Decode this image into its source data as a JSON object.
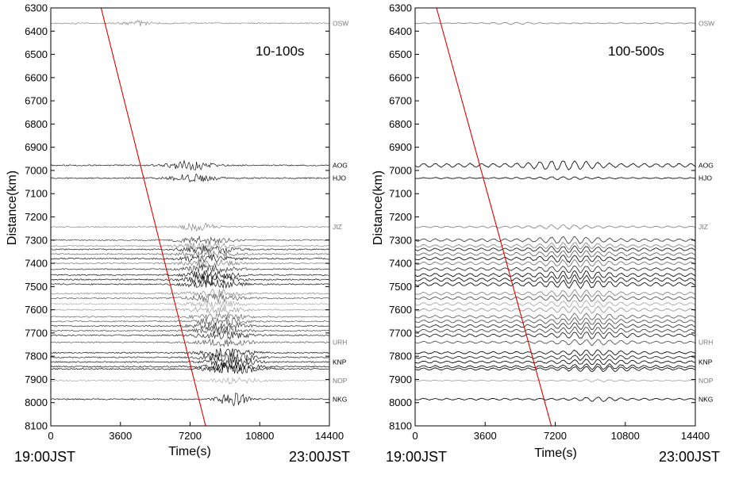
{
  "chart_data": [
    {
      "type": "line",
      "title": "10-100s",
      "xlabel": "Time(s)",
      "ylabel": "Distance(km)",
      "xlim": [
        0,
        14400
      ],
      "ylim": [
        6300,
        8100
      ],
      "y_inverted": true,
      "x_ticks": [
        0,
        3600,
        7200,
        10800,
        14400
      ],
      "y_ticks": [
        6300,
        6400,
        6500,
        6600,
        6700,
        6800,
        6900,
        7000,
        7100,
        7200,
        7300,
        7400,
        7500,
        7600,
        7700,
        7800,
        7900,
        8000,
        8100
      ],
      "start_label": "19:00JST",
      "end_label": "23:00JST",
      "arrival_line": {
        "color": "#e00000",
        "points": [
          [
            2600,
            6300
          ],
          [
            8000,
            8100
          ]
        ]
      },
      "stations": [
        {
          "name": "OSW",
          "distance": 6366,
          "color": "#888888",
          "burst_center": 4500,
          "burst_width": 1500,
          "amp": 3
        },
        {
          "name": "AOG",
          "distance": 6978,
          "color": "#111111",
          "burst_center": 7200,
          "burst_width": 2200,
          "amp": 6
        },
        {
          "name": "HJO",
          "distance": 7033,
          "color": "#111111",
          "burst_center": 7400,
          "burst_width": 2200,
          "amp": 5
        },
        {
          "name": "JIZ",
          "distance": 7243,
          "color": "#888888",
          "burst_center": 7600,
          "burst_width": 1800,
          "amp": 5
        },
        {
          "name": "",
          "distance": 7300,
          "color": "#444444",
          "burst_center": 8000,
          "burst_width": 2600,
          "amp": 5
        },
        {
          "name": "",
          "distance": 7325,
          "color": "#888888",
          "burst_center": 8000,
          "burst_width": 2600,
          "amp": 5
        },
        {
          "name": "",
          "distance": 7340,
          "color": "#222222",
          "burst_center": 8100,
          "burst_width": 2600,
          "amp": 5
        },
        {
          "name": "",
          "distance": 7360,
          "color": "#666666",
          "burst_center": 8100,
          "burst_width": 2600,
          "amp": 5
        },
        {
          "name": "",
          "distance": 7380,
          "color": "#111111",
          "burst_center": 8100,
          "burst_width": 2600,
          "amp": 5
        },
        {
          "name": "",
          "distance": 7400,
          "color": "#777777",
          "burst_center": 8200,
          "burst_width": 2600,
          "amp": 5
        },
        {
          "name": "",
          "distance": 7425,
          "color": "#333333",
          "burst_center": 8200,
          "burst_width": 2600,
          "amp": 5
        },
        {
          "name": "",
          "distance": 7450,
          "color": "#111111",
          "burst_center": 8300,
          "burst_width": 2600,
          "amp": 6
        },
        {
          "name": "",
          "distance": 7470,
          "color": "#111111",
          "burst_center": 8300,
          "burst_width": 2600,
          "amp": 6
        },
        {
          "name": "",
          "distance": 7490,
          "color": "#111111",
          "burst_center": 8300,
          "burst_width": 2600,
          "amp": 6
        },
        {
          "name": "",
          "distance": 7530,
          "color": "#888888",
          "burst_center": 8400,
          "burst_width": 2600,
          "amp": 5
        },
        {
          "name": "",
          "distance": 7550,
          "color": "#555555",
          "burst_center": 8500,
          "burst_width": 2600,
          "amp": 5
        },
        {
          "name": "",
          "distance": 7575,
          "color": "#aaaaaa",
          "burst_center": 8500,
          "burst_width": 2600,
          "amp": 5
        },
        {
          "name": "",
          "distance": 7600,
          "color": "#999999",
          "burst_center": 8600,
          "burst_width": 2600,
          "amp": 5
        },
        {
          "name": "",
          "distance": 7630,
          "color": "#666666",
          "burst_center": 8700,
          "burst_width": 2600,
          "amp": 5
        },
        {
          "name": "",
          "distance": 7650,
          "color": "#555555",
          "burst_center": 8700,
          "burst_width": 2600,
          "amp": 5
        },
        {
          "name": "",
          "distance": 7670,
          "color": "#333333",
          "burst_center": 8800,
          "burst_width": 2600,
          "amp": 5
        },
        {
          "name": "",
          "distance": 7690,
          "color": "#444444",
          "burst_center": 8800,
          "burst_width": 2600,
          "amp": 5
        },
        {
          "name": "",
          "distance": 7710,
          "color": "#222222",
          "burst_center": 8900,
          "burst_width": 2600,
          "amp": 5
        },
        {
          "name": "URH",
          "distance": 7740,
          "color": "#555555",
          "burst_center": 9000,
          "burst_width": 2600,
          "amp": 5
        },
        {
          "name": "",
          "distance": 7785,
          "color": "#111111",
          "burst_center": 9100,
          "burst_width": 2600,
          "amp": 6
        },
        {
          "name": "",
          "distance": 7805,
          "color": "#222222",
          "burst_center": 9200,
          "burst_width": 2600,
          "amp": 6
        },
        {
          "name": "KNP",
          "distance": 7825,
          "color": "#111111",
          "burst_center": 9300,
          "burst_width": 2600,
          "amp": 6
        },
        {
          "name": "",
          "distance": 7845,
          "color": "#111111",
          "burst_center": 9300,
          "burst_width": 2600,
          "amp": 6
        },
        {
          "name": "",
          "distance": 7855,
          "color": "#111111",
          "burst_center": 9400,
          "burst_width": 2600,
          "amp": 6
        },
        {
          "name": "NOP",
          "distance": 7905,
          "color": "#aaaaaa",
          "burst_center": 9600,
          "burst_width": 2200,
          "amp": 4
        },
        {
          "name": "NKG",
          "distance": 7985,
          "color": "#111111",
          "burst_center": 9400,
          "burst_width": 1400,
          "amp": 10
        }
      ]
    },
    {
      "type": "line",
      "title": "100-500s",
      "xlabel": "Time(s)",
      "ylabel": "Distance(km)",
      "xlim": [
        0,
        14400
      ],
      "ylim": [
        6300,
        8100
      ],
      "y_inverted": true,
      "x_ticks": [
        0,
        3600,
        7200,
        10800,
        14400
      ],
      "y_ticks": [
        6300,
        6400,
        6500,
        6600,
        6700,
        6800,
        6900,
        7000,
        7100,
        7200,
        7300,
        7400,
        7500,
        7600,
        7700,
        7800,
        7900,
        8000,
        8100
      ],
      "start_label": "19:00JST",
      "end_label": "23:00JST",
      "arrival_line": {
        "color": "#e00000",
        "points": [
          [
            1100,
            6300
          ],
          [
            7000,
            8100
          ]
        ]
      },
      "stations": [
        {
          "name": "OSW",
          "distance": 6366,
          "color": "#888888",
          "burst_center": 5000,
          "burst_width": 2500,
          "amp": 1.5
        },
        {
          "name": "AOG",
          "distance": 6978,
          "color": "#111111",
          "burst_center": 7600,
          "burst_width": 3500,
          "amp": 7
        },
        {
          "name": "HJO",
          "distance": 7033,
          "color": "#111111",
          "burst_center": 7600,
          "burst_width": 3500,
          "amp": 2
        },
        {
          "name": "JIZ",
          "distance": 7243,
          "color": "#888888",
          "burst_center": 7600,
          "burst_width": 3500,
          "amp": 3
        },
        {
          "name": "",
          "distance": 7300,
          "color": "#444444",
          "burst_center": 8000,
          "burst_width": 3500,
          "amp": 5
        },
        {
          "name": "",
          "distance": 7325,
          "color": "#888888",
          "burst_center": 8000,
          "burst_width": 3500,
          "amp": 5
        },
        {
          "name": "",
          "distance": 7340,
          "color": "#222222",
          "burst_center": 8100,
          "burst_width": 3500,
          "amp": 5
        },
        {
          "name": "",
          "distance": 7360,
          "color": "#666666",
          "burst_center": 8100,
          "burst_width": 3500,
          "amp": 5
        },
        {
          "name": "",
          "distance": 7380,
          "color": "#111111",
          "burst_center": 8100,
          "burst_width": 3500,
          "amp": 5
        },
        {
          "name": "",
          "distance": 7400,
          "color": "#777777",
          "burst_center": 8200,
          "burst_width": 3500,
          "amp": 5
        },
        {
          "name": "",
          "distance": 7425,
          "color": "#333333",
          "burst_center": 8200,
          "burst_width": 3500,
          "amp": 5
        },
        {
          "name": "",
          "distance": 7450,
          "color": "#111111",
          "burst_center": 8300,
          "burst_width": 3500,
          "amp": 6
        },
        {
          "name": "",
          "distance": 7470,
          "color": "#111111",
          "burst_center": 8300,
          "burst_width": 3500,
          "amp": 6
        },
        {
          "name": "",
          "distance": 7490,
          "color": "#111111",
          "burst_center": 8300,
          "burst_width": 3500,
          "amp": 6
        },
        {
          "name": "",
          "distance": 7530,
          "color": "#888888",
          "burst_center": 8400,
          "burst_width": 3500,
          "amp": 5
        },
        {
          "name": "",
          "distance": 7550,
          "color": "#555555",
          "burst_center": 8500,
          "burst_width": 3500,
          "amp": 5
        },
        {
          "name": "",
          "distance": 7575,
          "color": "#aaaaaa",
          "burst_center": 8500,
          "burst_width": 3500,
          "amp": 5
        },
        {
          "name": "",
          "distance": 7600,
          "color": "#999999",
          "burst_center": 8600,
          "burst_width": 3500,
          "amp": 5
        },
        {
          "name": "",
          "distance": 7630,
          "color": "#666666",
          "burst_center": 8700,
          "burst_width": 3500,
          "amp": 5
        },
        {
          "name": "",
          "distance": 7650,
          "color": "#555555",
          "burst_center": 8700,
          "burst_width": 3500,
          "amp": 5
        },
        {
          "name": "",
          "distance": 7670,
          "color": "#333333",
          "burst_center": 8800,
          "burst_width": 3500,
          "amp": 5
        },
        {
          "name": "",
          "distance": 7690,
          "color": "#444444",
          "burst_center": 8800,
          "burst_width": 3500,
          "amp": 5
        },
        {
          "name": "",
          "distance": 7710,
          "color": "#222222",
          "burst_center": 8900,
          "burst_width": 3500,
          "amp": 5
        },
        {
          "name": "URH",
          "distance": 7740,
          "color": "#555555",
          "burst_center": 9000,
          "burst_width": 3500,
          "amp": 4
        },
        {
          "name": "",
          "distance": 7785,
          "color": "#111111",
          "burst_center": 9100,
          "burst_width": 3500,
          "amp": 4
        },
        {
          "name": "",
          "distance": 7805,
          "color": "#222222",
          "burst_center": 9200,
          "burst_width": 3500,
          "amp": 4
        },
        {
          "name": "KNP",
          "distance": 7825,
          "color": "#111111",
          "burst_center": 9300,
          "burst_width": 3500,
          "amp": 4
        },
        {
          "name": "",
          "distance": 7845,
          "color": "#111111",
          "burst_center": 9300,
          "burst_width": 3500,
          "amp": 4
        },
        {
          "name": "",
          "distance": 7855,
          "color": "#111111",
          "burst_center": 9400,
          "burst_width": 3500,
          "amp": 4
        },
        {
          "name": "NOP",
          "distance": 7905,
          "color": "#aaaaaa",
          "burst_center": 9500,
          "burst_width": 3000,
          "amp": 1.5
        },
        {
          "name": "NKG",
          "distance": 7985,
          "color": "#111111",
          "burst_center": 9500,
          "burst_width": 2500,
          "amp": 3
        }
      ]
    }
  ]
}
